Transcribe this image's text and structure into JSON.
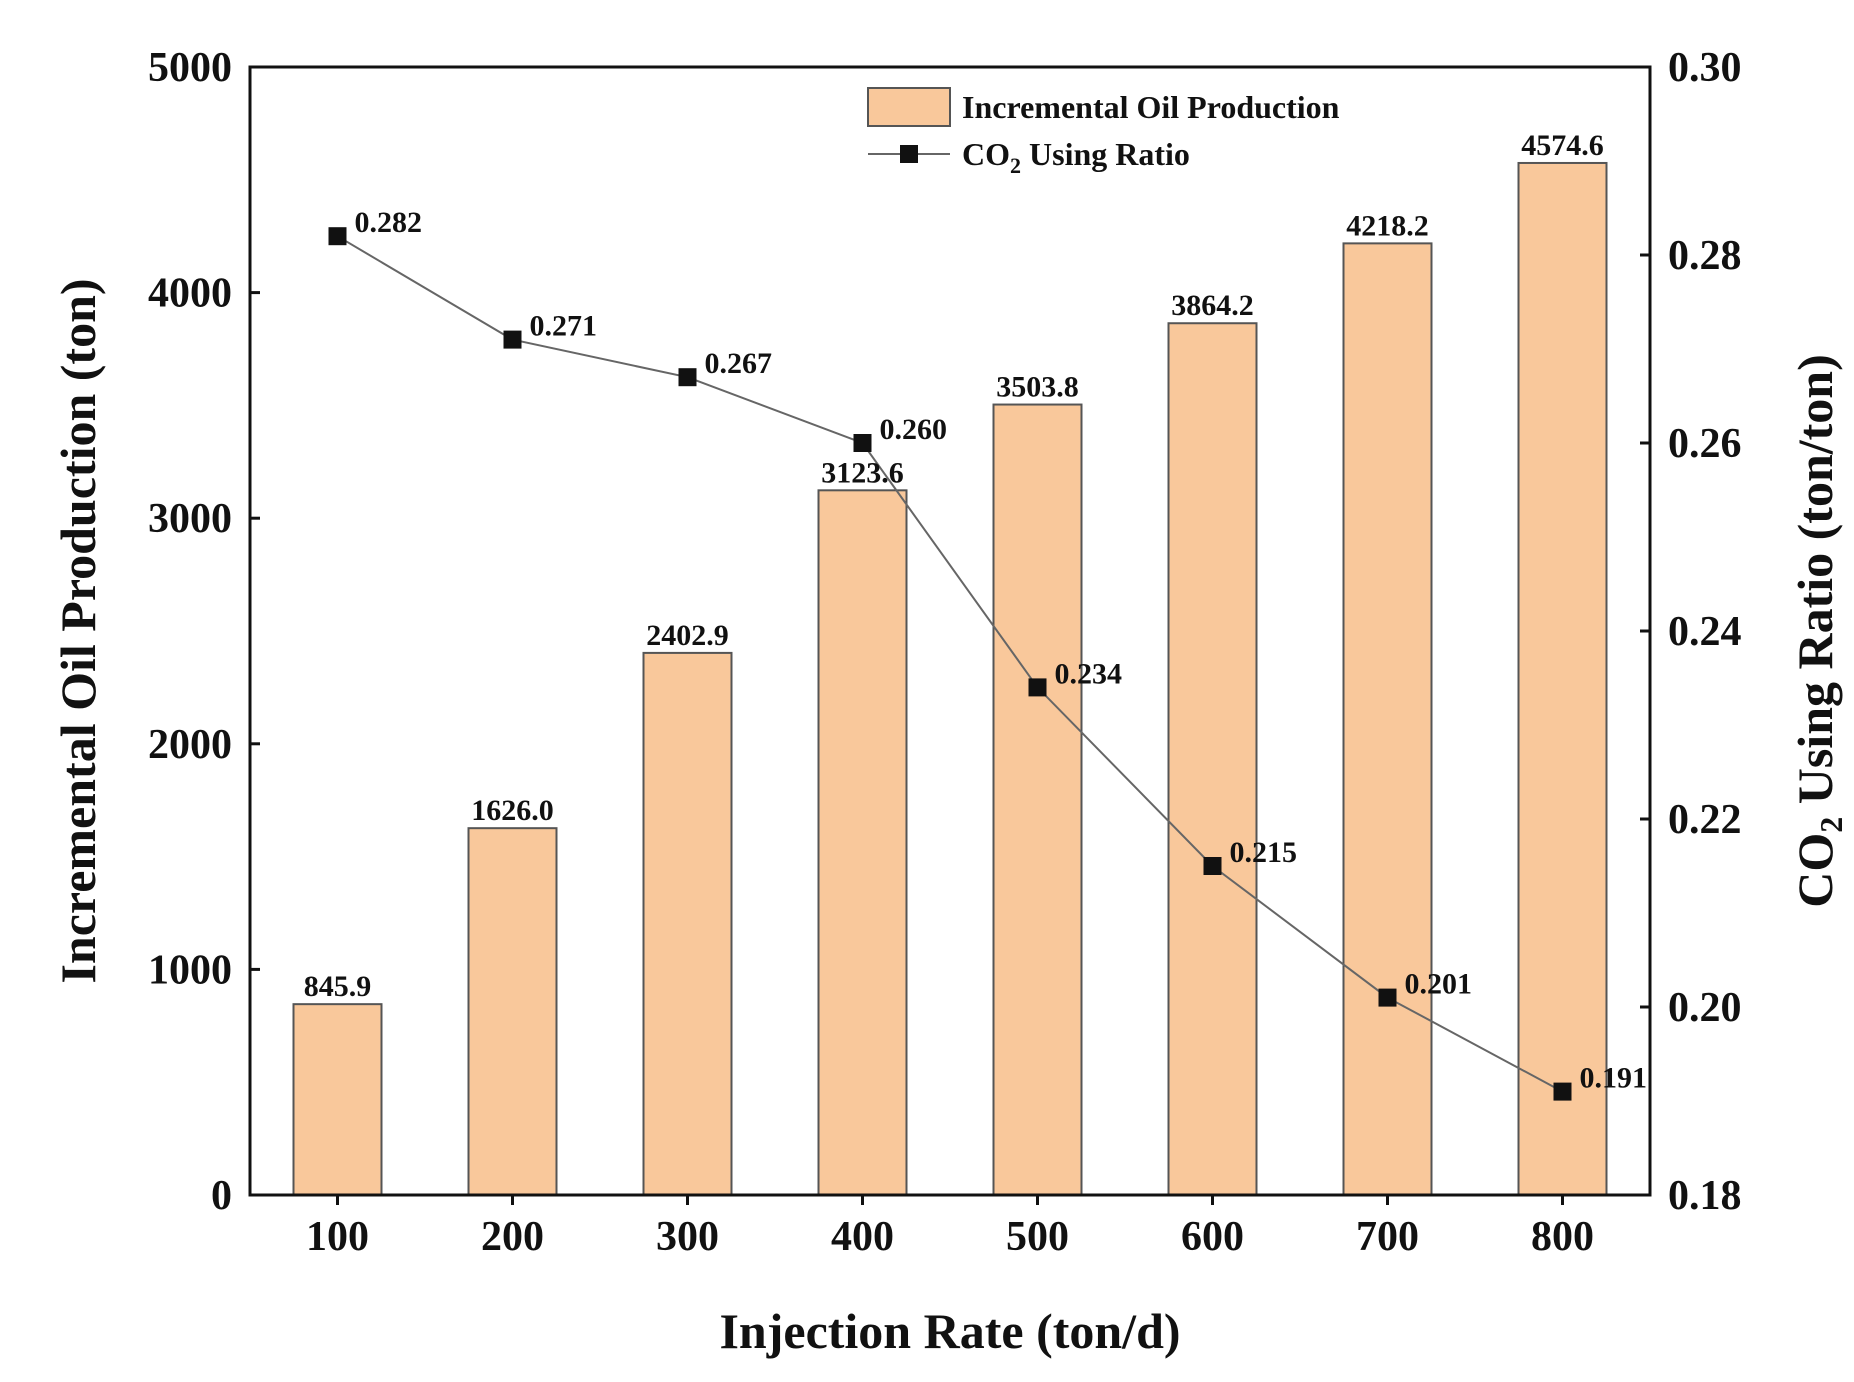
{
  "chart_data": {
    "type": "bar+line",
    "categories": [
      "100",
      "200",
      "300",
      "400",
      "500",
      "600",
      "700",
      "800"
    ],
    "series": [
      {
        "name": "Incremental Oil Production",
        "kind": "bar",
        "axis": "left",
        "values": [
          845.9,
          1626.0,
          2402.9,
          3123.6,
          3503.8,
          3864.2,
          4218.2,
          4574.6
        ],
        "labels": [
          "845.9",
          "1626.0",
          "2402.9",
          "3123.6",
          "3503.8",
          "3864.2",
          "4218.2",
          "4574.6"
        ],
        "color": "#f9c89b",
        "edge_color": "#555555"
      },
      {
        "name_main": "CO",
        "name_sub": "2",
        "name_rest": " Using Ratio",
        "kind": "line",
        "marker": "square",
        "axis": "right",
        "values": [
          0.282,
          0.271,
          0.267,
          0.26,
          0.234,
          0.215,
          0.201,
          0.191
        ],
        "labels": [
          "0.282",
          "0.271",
          "0.267",
          "0.260",
          "0.234",
          "0.215",
          "0.201",
          "0.191"
        ],
        "color": "#111111",
        "line_color": "#666666"
      }
    ],
    "xlabel": "Injection Rate (ton/d)",
    "ylabel": "Incremental Oil Production (ton)",
    "y2label_main": "CO",
    "y2label_sub": "2",
    "y2label_rest": " Using Ratio (ton/ton)",
    "ylim": [
      0,
      5000
    ],
    "yticks": [
      0,
      1000,
      2000,
      3000,
      4000,
      5000
    ],
    "y2lim": [
      0.18,
      0.3
    ],
    "y2ticks": [
      "0.18",
      "0.20",
      "0.22",
      "0.24",
      "0.26",
      "0.28",
      "0.30"
    ],
    "grid": false,
    "legend_position": "top-center"
  }
}
